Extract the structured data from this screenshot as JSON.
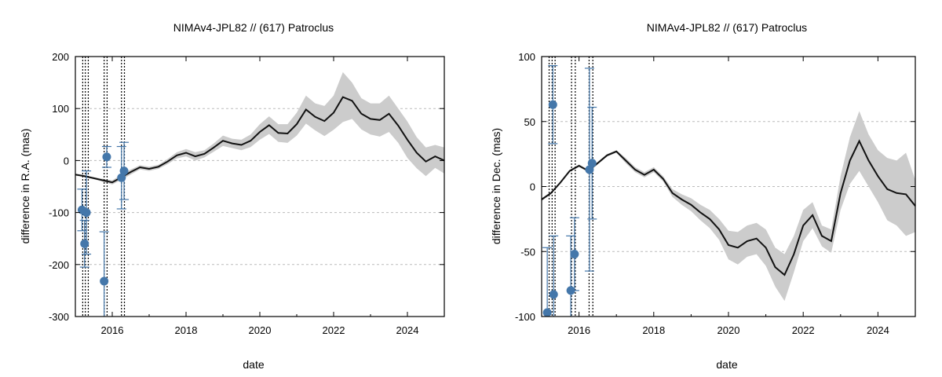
{
  "chart_data": [
    {
      "type": "line",
      "title": "NIMAv4-JPL82 // (617) Patroclus",
      "xlabel": "date",
      "ylabel": "difference in R.A. (mas)",
      "xlim": [
        2015.0,
        2025.0
      ],
      "ylim": [
        -300,
        200
      ],
      "xticks": [
        2016,
        2018,
        2020,
        2022,
        2024
      ],
      "yticks": [
        -300,
        -200,
        -100,
        0,
        100,
        200
      ],
      "grid": "horizontal-dashed",
      "colors": {
        "line": "#111111",
        "band": "#cccccc",
        "points": "#4477aa",
        "vlines": "#000000"
      },
      "model_line": {
        "x": [
          2015.0,
          2015.25,
          2015.5,
          2015.75,
          2016.0,
          2016.25,
          2016.5,
          2016.75,
          2017.0,
          2017.25,
          2017.5,
          2017.75,
          2018.0,
          2018.25,
          2018.5,
          2018.75,
          2019.0,
          2019.25,
          2019.5,
          2019.75,
          2020.0,
          2020.25,
          2020.5,
          2020.75,
          2021.0,
          2021.25,
          2021.5,
          2021.75,
          2022.0,
          2022.25,
          2022.5,
          2022.75,
          2023.0,
          2023.25,
          2023.5,
          2023.75,
          2024.0,
          2024.25,
          2024.5,
          2024.75,
          2025.0
        ],
        "y": [
          -27,
          -30,
          -34,
          -38,
          -42,
          -32,
          -22,
          -13,
          -16,
          -12,
          -2,
          10,
          15,
          8,
          13,
          25,
          38,
          33,
          30,
          38,
          55,
          68,
          53,
          52,
          70,
          98,
          84,
          76,
          92,
          122,
          115,
          90,
          80,
          78,
          90,
          67,
          40,
          15,
          -2,
          8,
          0
        ]
      },
      "band_upper": [
        -25,
        -28,
        -32,
        -35,
        -38,
        -27,
        -17,
        -9,
        -12,
        -8,
        3,
        16,
        22,
        16,
        20,
        33,
        48,
        42,
        40,
        50,
        70,
        85,
        70,
        70,
        92,
        125,
        110,
        105,
        125,
        170,
        150,
        120,
        110,
        110,
        125,
        100,
        75,
        45,
        25,
        30,
        25
      ],
      "band_lower": [
        -29,
        -32,
        -36,
        -41,
        -46,
        -37,
        -27,
        -17,
        -20,
        -16,
        -7,
        4,
        8,
        0,
        6,
        17,
        28,
        24,
        20,
        26,
        40,
        51,
        36,
        34,
        48,
        71,
        58,
        47,
        59,
        74,
        80,
        60,
        50,
        46,
        55,
        34,
        5,
        -15,
        -30,
        -14,
        -25
      ],
      "observations": [
        {
          "x": 2015.18,
          "y": -95,
          "err": 40
        },
        {
          "x": 2015.25,
          "y": -160,
          "err": 45
        },
        {
          "x": 2015.3,
          "y": -100,
          "err": 80
        },
        {
          "x": 2015.78,
          "y": -232,
          "err": 95
        },
        {
          "x": 2015.85,
          "y": 7,
          "err": 20
        },
        {
          "x": 2016.25,
          "y": -33,
          "err": 60
        },
        {
          "x": 2016.32,
          "y": -20,
          "err": 55
        }
      ],
      "vlines": [
        2015.2,
        2015.27,
        2015.35,
        2015.78,
        2015.86,
        2016.25,
        2016.33
      ]
    },
    {
      "type": "line",
      "title": "NIMAv4-JPL82 // (617) Patroclus",
      "xlabel": "date",
      "ylabel": "difference in Dec. (mas)",
      "xlim": [
        2015.0,
        2025.0
      ],
      "ylim": [
        -100,
        100
      ],
      "xticks": [
        2016,
        2018,
        2020,
        2022,
        2024
      ],
      "yticks": [
        -100,
        -50,
        0,
        50,
        100
      ],
      "grid": "horizontal-dashed",
      "colors": {
        "line": "#111111",
        "band": "#cccccc",
        "points": "#4477aa",
        "vlines": "#000000"
      },
      "model_line": {
        "x": [
          2015.0,
          2015.25,
          2015.5,
          2015.75,
          2016.0,
          2016.25,
          2016.5,
          2016.75,
          2017.0,
          2017.25,
          2017.5,
          2017.75,
          2018.0,
          2018.25,
          2018.5,
          2018.75,
          2019.0,
          2019.25,
          2019.5,
          2019.75,
          2020.0,
          2020.25,
          2020.5,
          2020.75,
          2021.0,
          2021.25,
          2021.5,
          2021.75,
          2022.0,
          2022.25,
          2022.5,
          2022.75,
          2023.0,
          2023.25,
          2023.5,
          2023.75,
          2024.0,
          2024.25,
          2024.5,
          2024.75,
          2025.0
        ],
        "y": [
          -10,
          -5,
          3,
          12,
          16,
          12,
          18,
          24,
          27,
          20,
          13,
          9,
          13,
          6,
          -5,
          -10,
          -14,
          -20,
          -25,
          -33,
          -45,
          -47,
          -42,
          -40,
          -47,
          -62,
          -68,
          -52,
          -30,
          -22,
          -38,
          -42,
          -5,
          20,
          35,
          20,
          8,
          -2,
          -5,
          -6,
          -15
        ]
      },
      "band_upper": [
        -9,
        -4,
        4,
        13,
        17,
        13,
        19,
        25,
        28,
        22,
        15,
        11,
        15,
        8,
        -2,
        -6,
        -9,
        -14,
        -18,
        -25,
        -34,
        -35,
        -30,
        -28,
        -33,
        -47,
        -52,
        -38,
        -18,
        -12,
        -30,
        -33,
        8,
        38,
        58,
        40,
        28,
        22,
        20,
        26,
        5
      ],
      "band_lower": [
        -11,
        -6,
        2,
        11,
        15,
        11,
        17,
        23,
        26,
        18,
        11,
        7,
        11,
        4,
        -8,
        -14,
        -19,
        -26,
        -32,
        -41,
        -56,
        -60,
        -54,
        -52,
        -61,
        -77,
        -88,
        -66,
        -42,
        -32,
        -46,
        -51,
        -18,
        2,
        12,
        0,
        -12,
        -26,
        -30,
        -38,
        -35
      ],
      "observations": [
        {
          "x": 2015.15,
          "y": -97,
          "err": 50
        },
        {
          "x": 2015.3,
          "y": 63,
          "err": 30
        },
        {
          "x": 2015.32,
          "y": -83,
          "err": 45
        },
        {
          "x": 2015.78,
          "y": -80,
          "err": 42
        },
        {
          "x": 2015.88,
          "y": -52,
          "err": 28
        },
        {
          "x": 2016.28,
          "y": 13,
          "err": 78
        },
        {
          "x": 2016.35,
          "y": 18,
          "err": 43
        }
      ],
      "vlines": [
        2015.2,
        2015.28,
        2015.36,
        2015.8,
        2015.9,
        2016.27,
        2016.37
      ]
    }
  ]
}
